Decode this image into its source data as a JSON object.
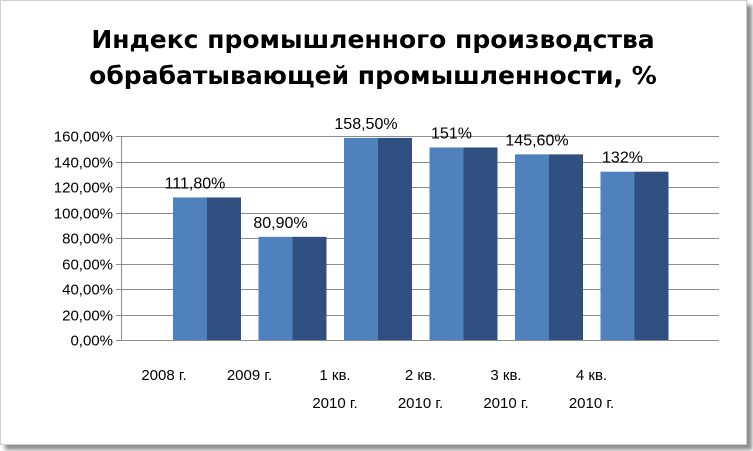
{
  "chart_data": {
    "type": "bar",
    "title_lines": [
      "Индекс промышленного производства",
      "обрабатывающей промышленности, %"
    ],
    "categories": [
      [
        "2008 г."
      ],
      [
        "2009 г."
      ],
      [
        "1 кв.",
        "2010 г."
      ],
      [
        "2 кв.",
        "2010 г."
      ],
      [
        "3 кв.",
        "2010 г."
      ],
      [
        "4 кв.",
        "2010 г."
      ]
    ],
    "series": [
      {
        "values": [
          111.8,
          80.9,
          158.5,
          151,
          145.6,
          132
        ],
        "color": "#4f81bd"
      },
      {
        "values": [
          111.8,
          80.9,
          158.5,
          151,
          145.6,
          132
        ],
        "color": "#2f5080"
      }
    ],
    "data_labels": [
      "111,80%",
      "80,90%",
      "158,50%",
      "151%",
      "145,60%",
      "132%"
    ],
    "ylim": [
      0,
      160
    ],
    "yticks": [
      "0,00%",
      "20,00%",
      "40,00%",
      "60,00%",
      "80,00%",
      "100,00%",
      "120,00%",
      "140,00%",
      "160,00%"
    ],
    "grid": true,
    "xlabel": "",
    "ylabel": ""
  }
}
